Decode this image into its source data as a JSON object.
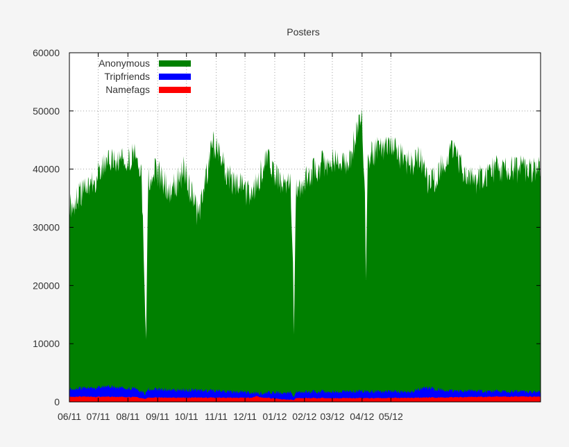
{
  "chart_data": {
    "type": "area",
    "title": "Posters",
    "xlabel": "",
    "ylabel": "",
    "stacked": true,
    "ylim": [
      0,
      60000
    ],
    "yticks": [
      "0",
      "10000",
      "20000",
      "30000",
      "40000",
      "50000",
      "60000"
    ],
    "xticks": [
      "06/11",
      "07/11",
      "08/11",
      "09/11",
      "10/11",
      "11/11",
      "12/11",
      "01/12",
      "02/12",
      "03/12",
      "04/12",
      "05/12"
    ],
    "xlim": [
      "2011-06-01",
      "2012-06-21"
    ],
    "grid": true,
    "legend_position": "top-left",
    "series": [
      {
        "name": "Anonymous",
        "color": "#008000",
        "values": [
          [
            0,
            33500
          ],
          [
            20,
            37000
          ],
          [
            40,
            41000
          ],
          [
            60,
            42000
          ],
          [
            70,
            42500
          ],
          [
            75,
            40000
          ],
          [
            79,
            15000
          ],
          [
            80,
            10800
          ],
          [
            82,
            38000
          ],
          [
            90,
            40000
          ],
          [
            105,
            36000
          ],
          [
            120,
            40000
          ],
          [
            130,
            34000
          ],
          [
            135,
            32000
          ],
          [
            140,
            37000
          ],
          [
            150,
            44500
          ],
          [
            160,
            41000
          ],
          [
            165,
            38500
          ],
          [
            175,
            37500
          ],
          [
            185,
            36000
          ],
          [
            195,
            37000
          ],
          [
            205,
            42000
          ],
          [
            215,
            38500
          ],
          [
            225,
            38000
          ],
          [
            230,
            37500
          ],
          [
            233,
            24000
          ],
          [
            234,
            11600
          ],
          [
            236,
            36000
          ],
          [
            250,
            39000
          ],
          [
            265,
            41000
          ],
          [
            280,
            42000
          ],
          [
            290,
            40000
          ],
          [
            300,
            47000
          ],
          [
            305,
            48000
          ],
          [
            308,
            36000
          ],
          [
            309,
            21000
          ],
          [
            311,
            42000
          ],
          [
            325,
            44000
          ],
          [
            340,
            43000
          ],
          [
            355,
            41000
          ],
          [
            365,
            42000
          ],
          [
            375,
            37000
          ],
          [
            390,
            41000
          ],
          [
            400,
            44000
          ],
          [
            415,
            38000
          ],
          [
            425,
            38000
          ],
          [
            440,
            40000
          ],
          [
            455,
            40000
          ],
          [
            480,
            40000
          ],
          [
            491,
            40000
          ]
        ]
      },
      {
        "name": "Tripfriends",
        "color": "#0000ff",
        "values": [
          [
            0,
            2200
          ],
          [
            40,
            2600
          ],
          [
            70,
            2300
          ],
          [
            79,
            1400
          ],
          [
            82,
            2200
          ],
          [
            150,
            1900
          ],
          [
            200,
            1500
          ],
          [
            230,
            1600
          ],
          [
            234,
            800
          ],
          [
            236,
            1700
          ],
          [
            300,
            1800
          ],
          [
            355,
            1700
          ],
          [
            370,
            2400
          ],
          [
            400,
            1900
          ],
          [
            450,
            1800
          ],
          [
            491,
            1700
          ]
        ]
      },
      {
        "name": "Namefags",
        "color": "#ff0000",
        "values": [
          [
            0,
            900
          ],
          [
            70,
            850
          ],
          [
            79,
            500
          ],
          [
            82,
            750
          ],
          [
            190,
            700
          ],
          [
            195,
            1000
          ],
          [
            200,
            750
          ],
          [
            234,
            300
          ],
          [
            236,
            650
          ],
          [
            330,
            650
          ],
          [
            450,
            900
          ],
          [
            491,
            900
          ]
        ]
      }
    ]
  }
}
